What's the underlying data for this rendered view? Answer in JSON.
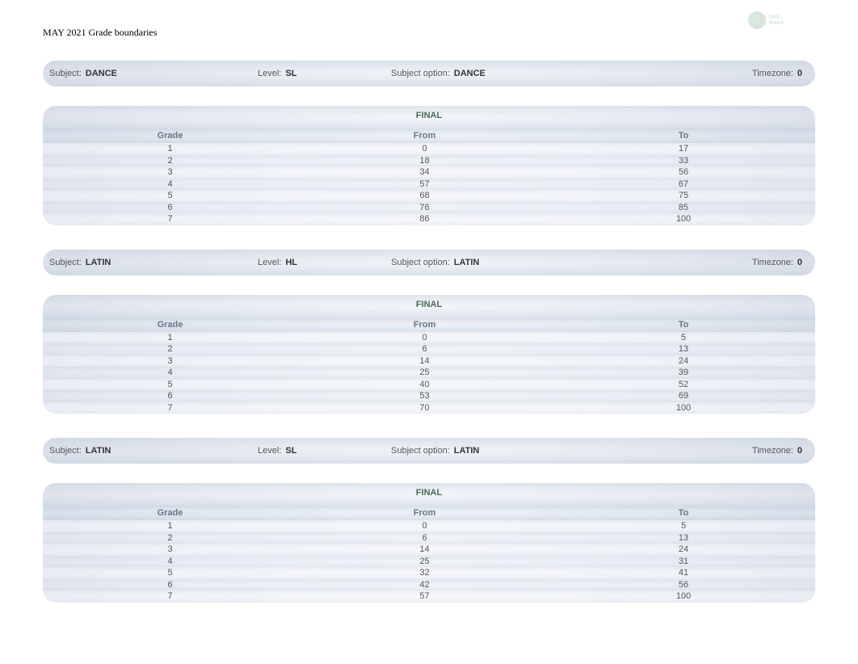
{
  "page_title": "MAY 2021 Grade boundaries",
  "labels": {
    "subject": "Subject:",
    "level": "Level:",
    "subject_option": "Subject option:",
    "timezone": "Timezone:",
    "final": "FINAL",
    "grade": "Grade",
    "from": "From",
    "to": "To"
  },
  "colors": {
    "heading": "#4a6a5a",
    "col_header": "#6a7682",
    "text": "#555555"
  },
  "sections": [
    {
      "subject": "DANCE",
      "level": "SL",
      "subject_option": "DANCE",
      "timezone": "0",
      "table_title": "FINAL",
      "rows": [
        {
          "grade": "1",
          "from": "0",
          "to": "17"
        },
        {
          "grade": "2",
          "from": "18",
          "to": "33"
        },
        {
          "grade": "3",
          "from": "34",
          "to": "56"
        },
        {
          "grade": "4",
          "from": "57",
          "to": "67"
        },
        {
          "grade": "5",
          "from": "68",
          "to": "75"
        },
        {
          "grade": "6",
          "from": "76",
          "to": "85"
        },
        {
          "grade": "7",
          "from": "86",
          "to": "100"
        }
      ]
    },
    {
      "subject": "LATIN",
      "level": "HL",
      "subject_option": "LATIN",
      "timezone": "0",
      "table_title": "FINAL",
      "rows": [
        {
          "grade": "1",
          "from": "0",
          "to": "5"
        },
        {
          "grade": "2",
          "from": "6",
          "to": "13"
        },
        {
          "grade": "3",
          "from": "14",
          "to": "24"
        },
        {
          "grade": "4",
          "from": "25",
          "to": "39"
        },
        {
          "grade": "5",
          "from": "40",
          "to": "52"
        },
        {
          "grade": "6",
          "from": "53",
          "to": "69"
        },
        {
          "grade": "7",
          "from": "70",
          "to": "100"
        }
      ]
    },
    {
      "subject": "LATIN",
      "level": "SL",
      "subject_option": "LATIN",
      "timezone": "0",
      "table_title": "FINAL",
      "rows": [
        {
          "grade": "1",
          "from": "0",
          "to": "5"
        },
        {
          "grade": "2",
          "from": "6",
          "to": "13"
        },
        {
          "grade": "3",
          "from": "14",
          "to": "24"
        },
        {
          "grade": "4",
          "from": "25",
          "to": "31"
        },
        {
          "grade": "5",
          "from": "32",
          "to": "41"
        },
        {
          "grade": "6",
          "from": "42",
          "to": "56"
        },
        {
          "grade": "7",
          "from": "57",
          "to": "100"
        }
      ]
    }
  ]
}
